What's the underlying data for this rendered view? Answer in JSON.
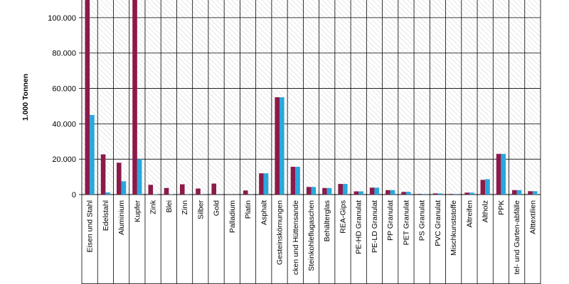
{
  "chart_data": {
    "type": "bar",
    "title": "",
    "xlabel": "",
    "ylabel": "1.000 Tonnen",
    "ylim": [
      0,
      110000
    ],
    "yticks": [
      0,
      20000,
      40000,
      60000,
      80000,
      100000
    ],
    "ytick_labels": [
      "0",
      "20.000",
      "40.000",
      "60.000",
      "80.000",
      "100.000"
    ],
    "grid": true,
    "legend": "none",
    "categories": [
      "Eisen und Stahl",
      "Edelstahl",
      "Aluminium",
      "Kupfer",
      "Zink",
      "Blei",
      "Zinn",
      "Silber",
      "Gold",
      "Palladium",
      "Platin",
      "Asphalt",
      "Gesteinskörnungen",
      "cken und Hüttensande",
      "Steinkohleflugaschen",
      "Behälterglas",
      "REA-Gips",
      "PE-HD Granulat",
      "PE-LD Granulat",
      "PP Granulat",
      "PET Granulat",
      "PS Granulat",
      "PVC Granulat",
      "Mischkunststoffe",
      "Altreifen",
      "Altholz",
      "PPK",
      "tel- und Garten-abfälle",
      "Alttextilien"
    ],
    "series": [
      {
        "color": "#8b1a4a",
        "values": [
          115000,
          22700,
          18000,
          115000,
          5500,
          3700,
          5800,
          3400,
          6200,
          150,
          2300,
          12000,
          55000,
          15700,
          4300,
          3700,
          6000,
          1800,
          3900,
          2500,
          1500,
          350,
          650,
          350,
          1100,
          8300,
          23000,
          2500,
          1900
        ]
      },
      {
        "color": "#2aa7dc",
        "values": [
          45000,
          1200,
          7500,
          20000,
          200,
          150,
          100,
          100,
          100,
          50,
          100,
          12000,
          55000,
          15700,
          4300,
          3700,
          6000,
          1800,
          3900,
          2500,
          1500,
          350,
          650,
          350,
          1100,
          8700,
          23000,
          2500,
          1900
        ]
      }
    ]
  }
}
